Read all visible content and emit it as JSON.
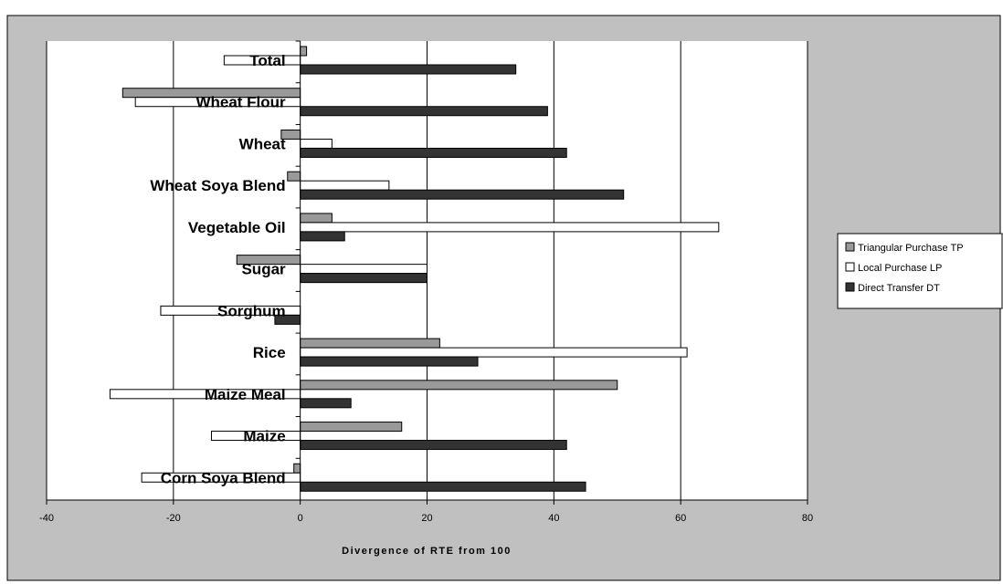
{
  "chart_data": {
    "type": "bar",
    "orientation": "horizontal",
    "title": "",
    "xlabel": "Divergence of RTE from 100",
    "ylabel": "",
    "xlim": [
      -40,
      80
    ],
    "xticks": [
      -40,
      -20,
      0,
      20,
      40,
      60,
      80
    ],
    "grid": true,
    "legend_position": "right",
    "categories": [
      "Total",
      "Wheat Flour",
      "Wheat",
      "Wheat Soya Blend",
      "Vegetable Oil",
      "Sugar",
      "Sorghum",
      "Rice",
      "Maize Meal",
      "Maize",
      "Corn Soya Blend"
    ],
    "series": [
      {
        "name": "Triangular Purchase TP",
        "color": "#999999",
        "values": [
          1,
          -28,
          -3,
          -2,
          5,
          -10,
          0,
          22,
          50,
          16,
          -1
        ]
      },
      {
        "name": "Local Purchase LP",
        "color": "#ffffff",
        "values": [
          -12,
          -26,
          5,
          14,
          66,
          20,
          -22,
          61,
          -30,
          -14,
          -25
        ]
      },
      {
        "name": "Direct Transfer DT",
        "color": "#333333",
        "values": [
          34,
          39,
          42,
          51,
          7,
          20,
          -4,
          28,
          8,
          42,
          45
        ]
      }
    ]
  }
}
